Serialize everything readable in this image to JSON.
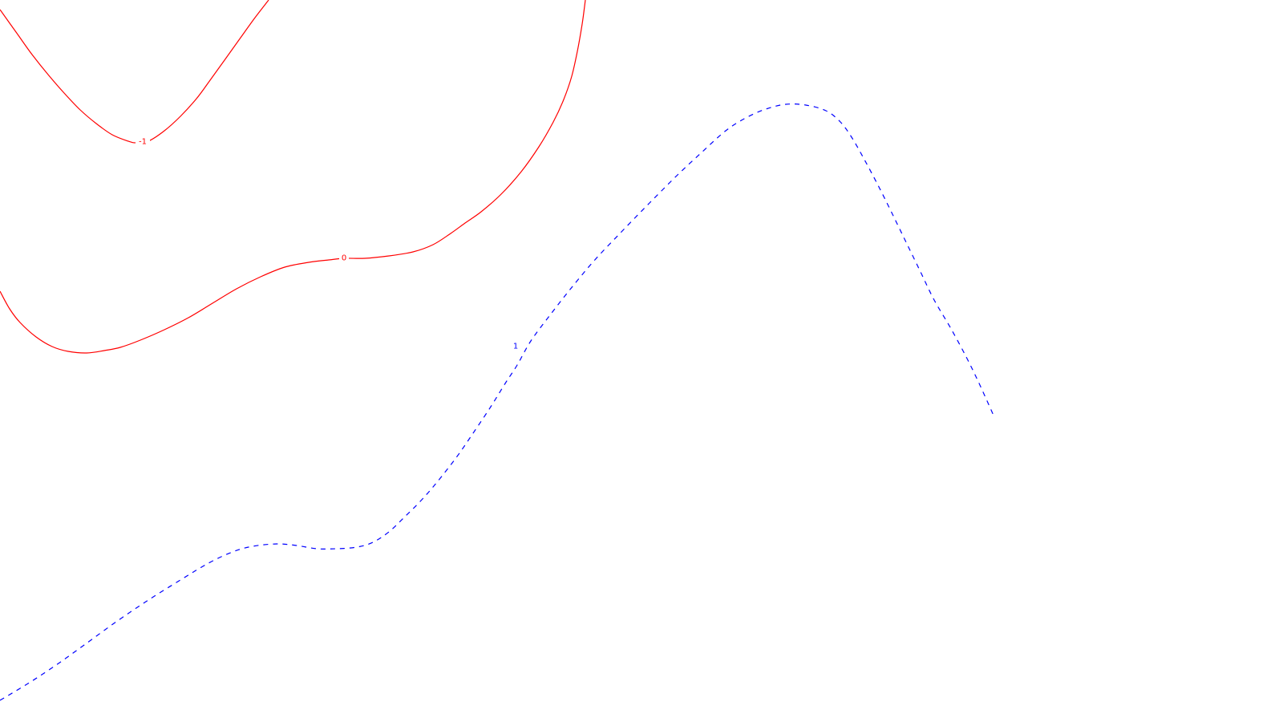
{
  "chart_data": {
    "type": "contour",
    "axes_visible": false,
    "grid": false,
    "legend": "none",
    "levels": [
      {
        "level": -1,
        "label": "-1",
        "color": "#ff0000",
        "linestyle": "solid",
        "segments": [
          {
            "points": [
              [
                0,
                12
              ],
              [
                20,
                40
              ],
              [
                40,
                68
              ],
              [
                60,
                93
              ],
              [
                80,
                116
              ],
              [
                100,
                137
              ],
              [
                120,
                154
              ],
              [
                140,
                168
              ],
              [
                160,
                176
              ],
              [
                170,
                178
              ],
              [
                185,
                176
              ],
              [
                205,
                163
              ],
              [
                225,
                145
              ],
              [
                245,
                123
              ],
              [
                262,
                100
              ],
              [
                280,
                75
              ],
              [
                300,
                47
              ],
              [
                318,
                22
              ],
              [
                335,
                0
              ]
            ],
            "label_at": [
              178,
              177
            ]
          }
        ]
      },
      {
        "level": 0,
        "label": "0",
        "color": "#ff0000",
        "linestyle": "solid",
        "segments": [
          {
            "points": [
              [
                0,
                363
              ],
              [
                12,
                385
              ],
              [
                25,
                402
              ],
              [
                45,
                420
              ],
              [
                65,
                432
              ],
              [
                85,
                438
              ],
              [
                108,
                440
              ],
              [
                130,
                437
              ],
              [
                150,
                433
              ],
              [
                175,
                424
              ],
              [
                205,
                411
              ],
              [
                235,
                396
              ],
              [
                265,
                378
              ],
              [
                295,
                360
              ],
              [
                325,
                345
              ],
              [
                355,
                333
              ],
              [
                385,
                327
              ],
              [
                410,
                324
              ],
              [
                430,
                322
              ],
              [
                455,
                322
              ],
              [
                485,
                319
              ],
              [
                515,
                314
              ],
              [
                540,
                305
              ],
              [
                562,
                291
              ],
              [
                580,
                278
              ],
              [
                600,
                264
              ],
              [
                625,
                242
              ],
              [
                650,
                214
              ],
              [
                672,
                183
              ],
              [
                690,
                152
              ],
              [
                703,
                124
              ],
              [
                713,
                95
              ],
              [
                720,
                64
              ],
              [
                726,
                30
              ],
              [
                730,
                0
              ]
            ],
            "label_at": [
              429,
              322
            ]
          }
        ]
      },
      {
        "level": 1,
        "label": "1",
        "color": "#0000ff",
        "linestyle": "dashed",
        "segments": [
          {
            "points": [
              [
                0,
                873
              ],
              [
                35,
                852
              ],
              [
                70,
                829
              ],
              [
                105,
                804
              ],
              [
                145,
                775
              ],
              [
                185,
                748
              ],
              [
                225,
                723
              ],
              [
                260,
                702
              ],
              [
                290,
                688
              ],
              [
                315,
                681
              ],
              [
                345,
                678
              ],
              [
                370,
                680
              ],
              [
                395,
                684
              ],
              [
                420,
                684
              ],
              [
                445,
                682
              ],
              [
                465,
                676
              ],
              [
                485,
                663
              ],
              [
                505,
                644
              ],
              [
                525,
                624
              ],
              [
                545,
                601
              ],
              [
                570,
                569
              ],
              [
                592,
                537
              ],
              [
                612,
                507
              ],
              [
                630,
                478
              ],
              [
                645,
                455
              ],
              [
                662,
                425
              ],
              [
                685,
                394
              ],
              [
                710,
                362
              ],
              [
                740,
                326
              ],
              [
                775,
                289
              ],
              [
                810,
                253
              ],
              [
                845,
                218
              ],
              [
                875,
                190
              ],
              [
                905,
                163
              ],
              [
                930,
                147
              ],
              [
                955,
                136
              ],
              [
                980,
                130
              ],
              [
                1005,
                131
              ],
              [
                1030,
                138
              ],
              [
                1048,
                152
              ],
              [
                1062,
                171
              ],
              [
                1078,
                199
              ],
              [
                1095,
                231
              ],
              [
                1112,
                265
              ],
              [
                1130,
                302
              ],
              [
                1148,
                339
              ],
              [
                1165,
                374
              ],
              [
                1185,
                408
              ],
              [
                1205,
                445
              ],
              [
                1222,
                480
              ],
              [
                1240,
                520
              ]
            ],
            "label_at": [
              643,
              432
            ]
          }
        ]
      }
    ]
  }
}
